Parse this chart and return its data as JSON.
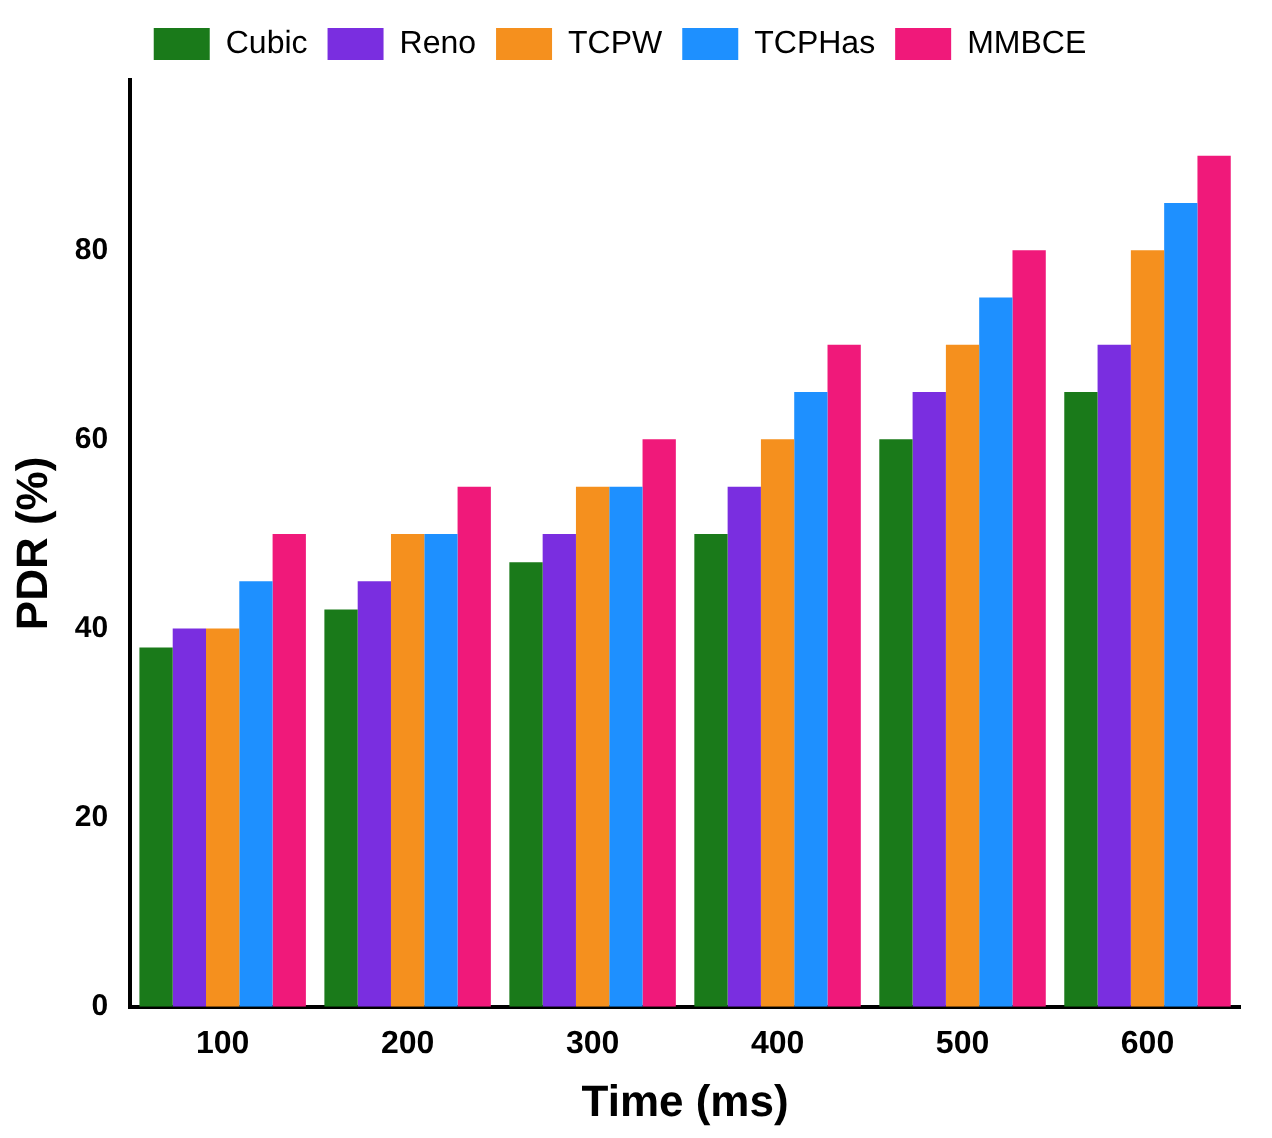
{
  "chart_data": {
    "type": "bar",
    "xlabel": "Time (ms)",
    "ylabel": "PDR (%)",
    "categories": [
      "100",
      "200",
      "300",
      "400",
      "500",
      "600"
    ],
    "series": [
      {
        "name": "Cubic",
        "color": "#1a7a1a",
        "values": [
          38,
          42,
          47,
          50,
          60,
          65
        ]
      },
      {
        "name": "Reno",
        "color": "#7a2ee0",
        "values": [
          40,
          45,
          50,
          55,
          65,
          70
        ]
      },
      {
        "name": "TCPW",
        "color": "#f5901e",
        "values": [
          40,
          50,
          55,
          60,
          70,
          80
        ]
      },
      {
        "name": "TCPHas",
        "color": "#1e90ff",
        "values": [
          45,
          50,
          55,
          65,
          75,
          85
        ]
      },
      {
        "name": "MMBCE",
        "color": "#f0197a",
        "values": [
          50,
          55,
          60,
          70,
          80,
          90
        ]
      }
    ],
    "ylim": [
      0,
      98
    ],
    "yticks": [
      0,
      20,
      40,
      60,
      80
    ],
    "grid": false,
    "legend": "top"
  }
}
